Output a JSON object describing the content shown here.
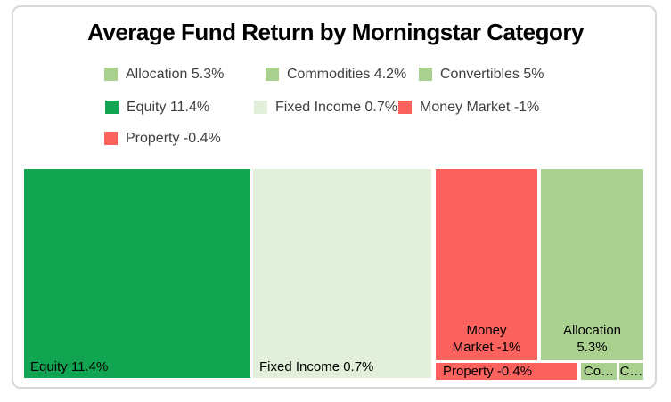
{
  "title": "Average Fund Return by Morningstar Category",
  "legend": {
    "items": [
      {
        "label": "Allocation 5.3%",
        "color": "#a9d08e"
      },
      {
        "label": "Commodities 4.2%",
        "color": "#a9d08e"
      },
      {
        "label": "Convertibles 5%",
        "color": "#a9d08e"
      },
      {
        "label": "Equity 11.4%",
        "color": "#12a551"
      },
      {
        "label": "Fixed Income 0.7%",
        "color": "#e2efda"
      },
      {
        "label": "Money Market -1%",
        "color": "#fb625d"
      },
      {
        "label": "Property -0.4%",
        "color": "#fb625d"
      }
    ]
  },
  "treemap": {
    "equity": {
      "label": "Equity 11.4%",
      "color": "#12a551"
    },
    "fixed_income": {
      "label": "Fixed Income 0.7%",
      "color": "#e2efda"
    },
    "money_market": {
      "lines": [
        "Money",
        "Market -1%"
      ],
      "color": "#fb625d"
    },
    "allocation": {
      "lines": [
        "Allocation",
        "5.3%"
      ],
      "color": "#a9d08e"
    },
    "property": {
      "label": "Property -0.4%",
      "color": "#fb625d"
    },
    "commodities": {
      "label": "Co…",
      "color": "#a9d08e"
    },
    "convertibles": {
      "label": "C…",
      "color": "#a9d08e"
    }
  },
  "chart_data": {
    "type": "treemap",
    "title": "Average Fund Return by Morningstar Category",
    "categories": [
      "Allocation",
      "Commodities",
      "Convertibles",
      "Equity",
      "Fixed Income",
      "Money Market",
      "Property"
    ],
    "values": [
      5.3,
      4.2,
      5,
      11.4,
      0.7,
      -1,
      -0.4
    ],
    "unit": "%",
    "legend_position": "top",
    "grid": false,
    "colors": {
      "positive_high": "#12a551",
      "positive_mid": "#a9d08e",
      "positive_low": "#e2efda",
      "negative": "#fb625d",
      "border": "#d8d8d8",
      "label_text": "#000000",
      "legend_text": "#3f3f3f"
    }
  }
}
